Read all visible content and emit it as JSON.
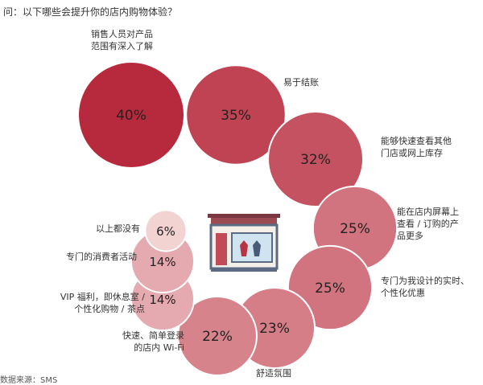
{
  "question": "问：以下哪些会提升你的店内购物体验？",
  "footer": "数据来源：SMS",
  "colors": {
    "bubble_dark": "#b72a3d",
    "bubble_light": "#f3d2d2",
    "store_roof": "#9c4b52",
    "store_frame": "#5b6b83",
    "store_window": "#cfe4f0"
  },
  "icon": "store-icon",
  "chart_data": {
    "type": "bubble",
    "title": "",
    "items": [
      {
        "label_lines": [
          "销售人员对产品",
          "范围有深入了解"
        ],
        "value": 40,
        "display": "40%"
      },
      {
        "label_lines": [
          "易于结账"
        ],
        "value": 35,
        "display": "35%"
      },
      {
        "label_lines": [
          "能够快速查看其他",
          "门店或网上库存"
        ],
        "value": 32,
        "display": "32%"
      },
      {
        "label_lines": [
          "能在店内屏幕上",
          "查看 / 订购的产",
          "品更多"
        ],
        "value": 25,
        "display": "25%"
      },
      {
        "label_lines": [
          "专门为我设计的实时、",
          "个性化优惠"
        ],
        "value": 25,
        "display": "25%"
      },
      {
        "label_lines": [
          "舒适氛围"
        ],
        "value": 23,
        "display": "23%"
      },
      {
        "label_lines": [
          "快速、简单登录",
          "的店内 Wi-Fi"
        ],
        "value": 22,
        "display": "22%"
      },
      {
        "label_lines": [
          "VIP 福利，即休息室 /",
          "个性化购物 / 茶点"
        ],
        "value": 14,
        "display": "14%"
      },
      {
        "label_lines": [
          "专门的消费者活动"
        ],
        "value": 14,
        "display": "14%"
      },
      {
        "label_lines": [
          "以上都没有"
        ],
        "value": 6,
        "display": "6%"
      }
    ]
  }
}
